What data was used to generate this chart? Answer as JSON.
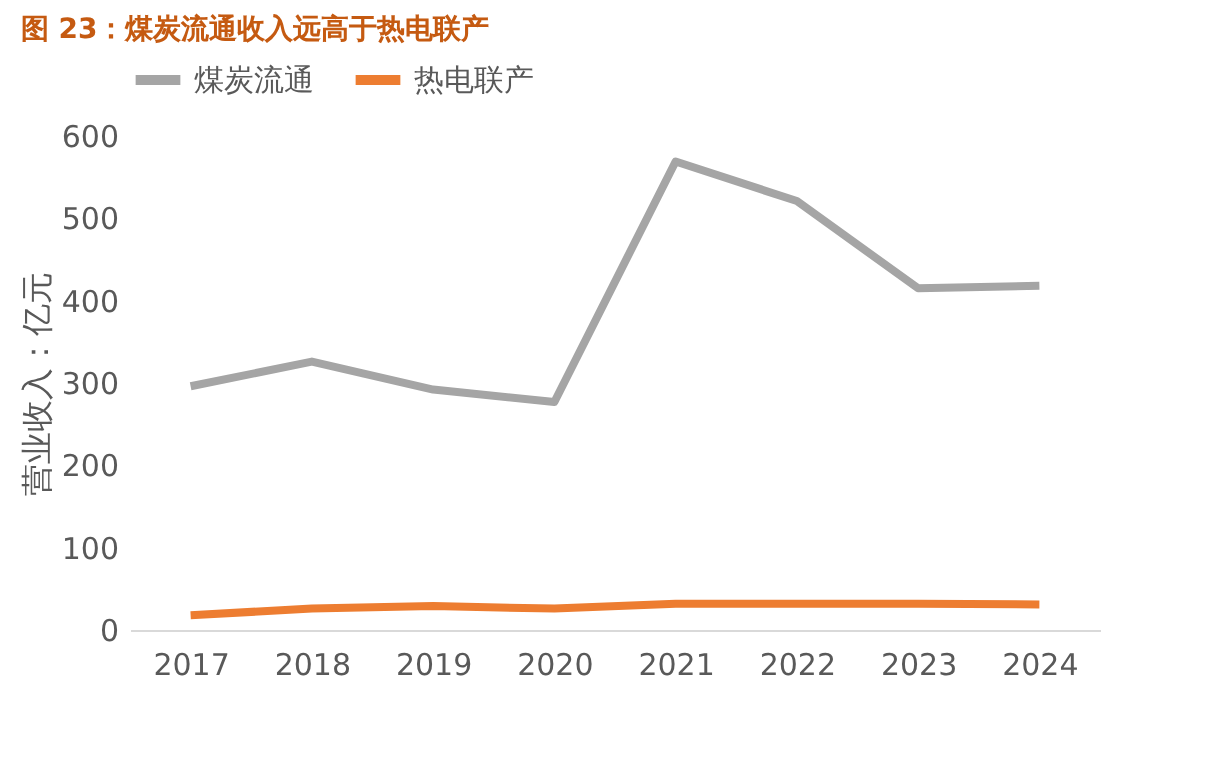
{
  "chart_data": {
    "type": "line",
    "title": "图 23：煤炭流通收入远高于热电联产",
    "categories": [
      "2017",
      "2018",
      "2019",
      "2020",
      "2021",
      "2022",
      "2023",
      "2024"
    ],
    "series": [
      {
        "name": "煤炭流通",
        "color": "#a5a5a5",
        "values": [
          296,
          326,
          292,
          277,
          569,
          521,
          415,
          418
        ]
      },
      {
        "name": "热电联产",
        "color": "#ed7d31",
        "values": [
          18,
          26,
          29,
          26,
          32,
          32,
          32,
          31
        ]
      }
    ],
    "ylabel": "营业收入：亿元",
    "ylim": [
      0,
      600
    ],
    "yticks": [
      0,
      100,
      200,
      300,
      400,
      500,
      600
    ],
    "grid": false,
    "legend": "top",
    "marker": "none",
    "line_style": "solid"
  }
}
